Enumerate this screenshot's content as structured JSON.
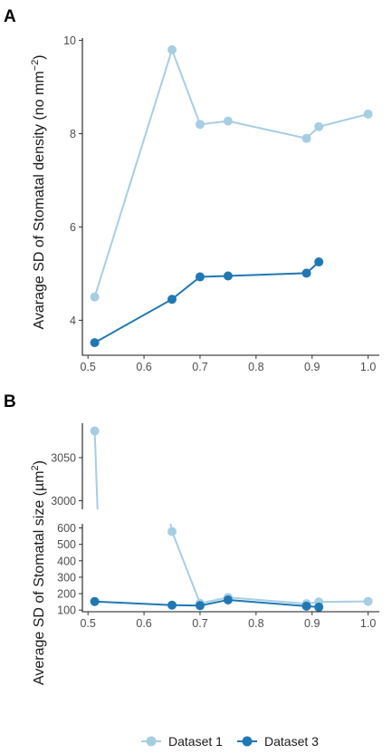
{
  "chart_data": [
    {
      "panel": "A",
      "type": "line",
      "ylabel": "Avarage SD of Stomatal density (no mm",
      "ylabel_sup": "−2",
      "ylabel_close": ")",
      "xlim": [
        0.49,
        1.02
      ],
      "ylim": [
        3.25,
        10.05
      ],
      "xticks": [
        "0.5",
        "0.6",
        "0.7",
        "0.8",
        "0.9",
        "1.0"
      ],
      "yticks": [
        "4",
        "6",
        "8",
        "10"
      ],
      "series": [
        {
          "name": "Dataset 1",
          "color": "#a6cee3",
          "x": [
            0.512,
            0.65,
            0.7,
            0.75,
            0.89,
            0.912,
            1.0
          ],
          "y": [
            4.5,
            9.8,
            8.2,
            8.27,
            7.9,
            8.15,
            8.42
          ]
        },
        {
          "name": "Dataset 3",
          "color": "#1f78b4",
          "x": [
            0.512,
            0.65,
            0.7,
            0.75,
            0.89,
            0.912
          ],
          "y": [
            3.52,
            4.45,
            4.93,
            4.95,
            5.01,
            5.25
          ]
        }
      ]
    },
    {
      "panel": "B",
      "type": "line",
      "broken_axis": true,
      "ylabel": "Average SD of Stomatal size (µm",
      "ylabel_sup": "2",
      "ylabel_close": ")",
      "xlim": [
        0.49,
        1.02
      ],
      "ylim_upper": [
        2990,
        3090
      ],
      "ylim_lower": [
        90,
        625
      ],
      "xticks": [
        "0.5",
        "0.6",
        "0.7",
        "0.8",
        "0.9",
        "1.0"
      ],
      "yticks_upper": [
        "3000",
        "3050"
      ],
      "yticks_lower": [
        "100",
        "200",
        "300",
        "400",
        "500",
        "600"
      ],
      "series": [
        {
          "name": "Dataset 1",
          "color": "#a6cee3",
          "x": [
            0.512,
            0.65,
            0.7,
            0.75,
            0.89,
            0.912,
            1.0
          ],
          "y": [
            3081,
            578,
            141,
            177,
            139,
            149,
            153
          ]
        },
        {
          "name": "Dataset 3",
          "color": "#1f78b4",
          "x": [
            0.512,
            0.65,
            0.7,
            0.75,
            0.89,
            0.912
          ],
          "y": [
            152,
            130,
            127,
            162,
            124,
            118
          ]
        }
      ]
    }
  ],
  "legend": {
    "placement": "bottom",
    "items": [
      {
        "label": "Dataset 1",
        "color": "#a6cee3"
      },
      {
        "label": "Dataset 3",
        "color": "#1f78b4"
      }
    ]
  }
}
